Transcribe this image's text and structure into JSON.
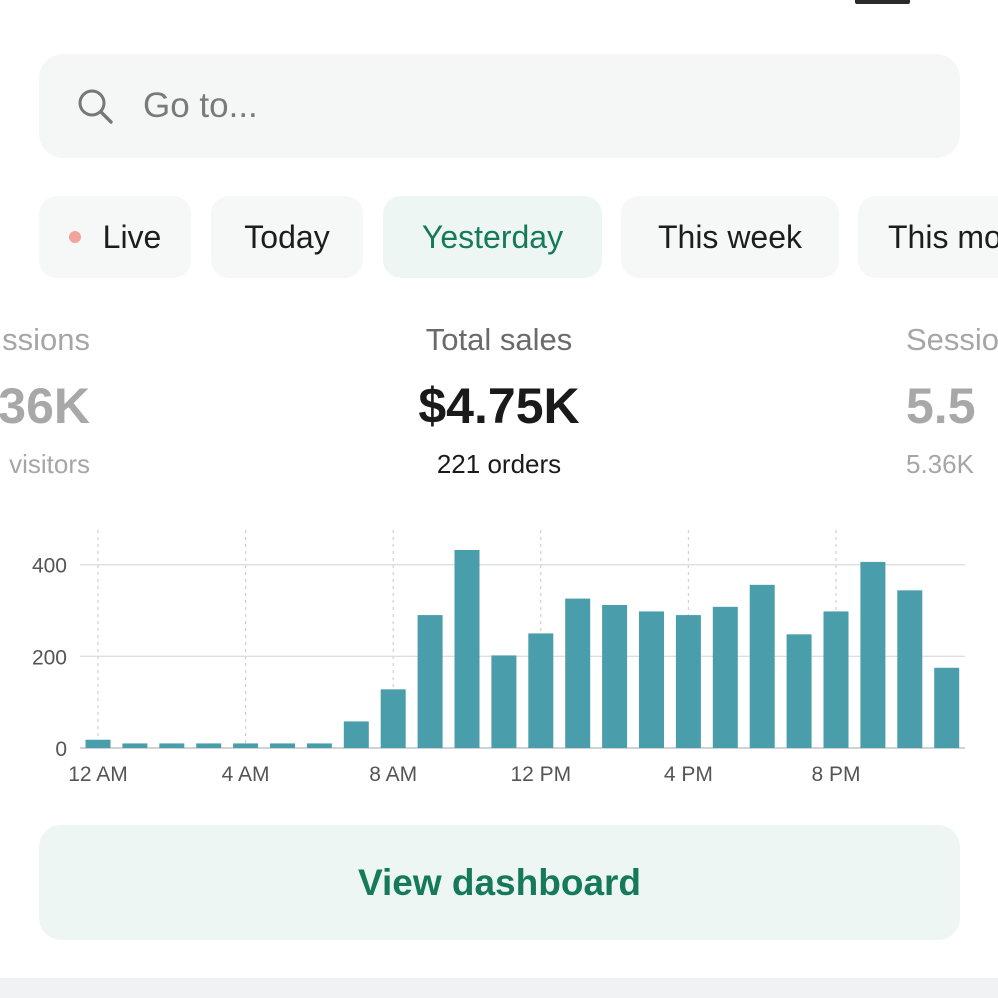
{
  "search": {
    "placeholder": "Go to...",
    "icon": "search-icon"
  },
  "tabs": [
    {
      "label": "Live",
      "has_dot": true
    },
    {
      "label": "Today"
    },
    {
      "label": "Yesterday",
      "active": true
    },
    {
      "label": "This week"
    },
    {
      "label": "This mo"
    }
  ],
  "metrics": {
    "left": {
      "label": "ssions",
      "value": "36K",
      "sub": "visitors"
    },
    "center": {
      "label": "Total sales",
      "value": "$4.75K",
      "sub": "221 orders"
    },
    "right": {
      "label": "Sessio",
      "value": "5.5",
      "sub": "5.36K"
    }
  },
  "chart_data": {
    "type": "bar",
    "title": "",
    "xlabel": "",
    "ylabel": "",
    "x": [
      0,
      1,
      2,
      3,
      4,
      5,
      6,
      7,
      8,
      9,
      10,
      11,
      12,
      13,
      14,
      15,
      16,
      17,
      18,
      19,
      20,
      21,
      22,
      23
    ],
    "x_tick_labels": [
      "12 AM",
      "4 AM",
      "8 AM",
      "12 PM",
      "4 PM",
      "8 PM"
    ],
    "x_tick_hours": [
      0,
      4,
      8,
      12,
      16,
      20
    ],
    "values": [
      18,
      10,
      10,
      10,
      10,
      10,
      10,
      58,
      128,
      290,
      432,
      202,
      250,
      326,
      312,
      298,
      290,
      308,
      356,
      248,
      298,
      406,
      344,
      175
    ],
    "y_ticks": [
      0,
      200,
      400
    ],
    "ylim": [
      0,
      432
    ],
    "grid": true,
    "bar_color": "#4a9eab"
  },
  "actions": {
    "view_dashboard": "View dashboard"
  },
  "colors": {
    "accent": "#157a5a",
    "live_dot": "#f0a49a",
    "bar": "#4a9eab"
  }
}
